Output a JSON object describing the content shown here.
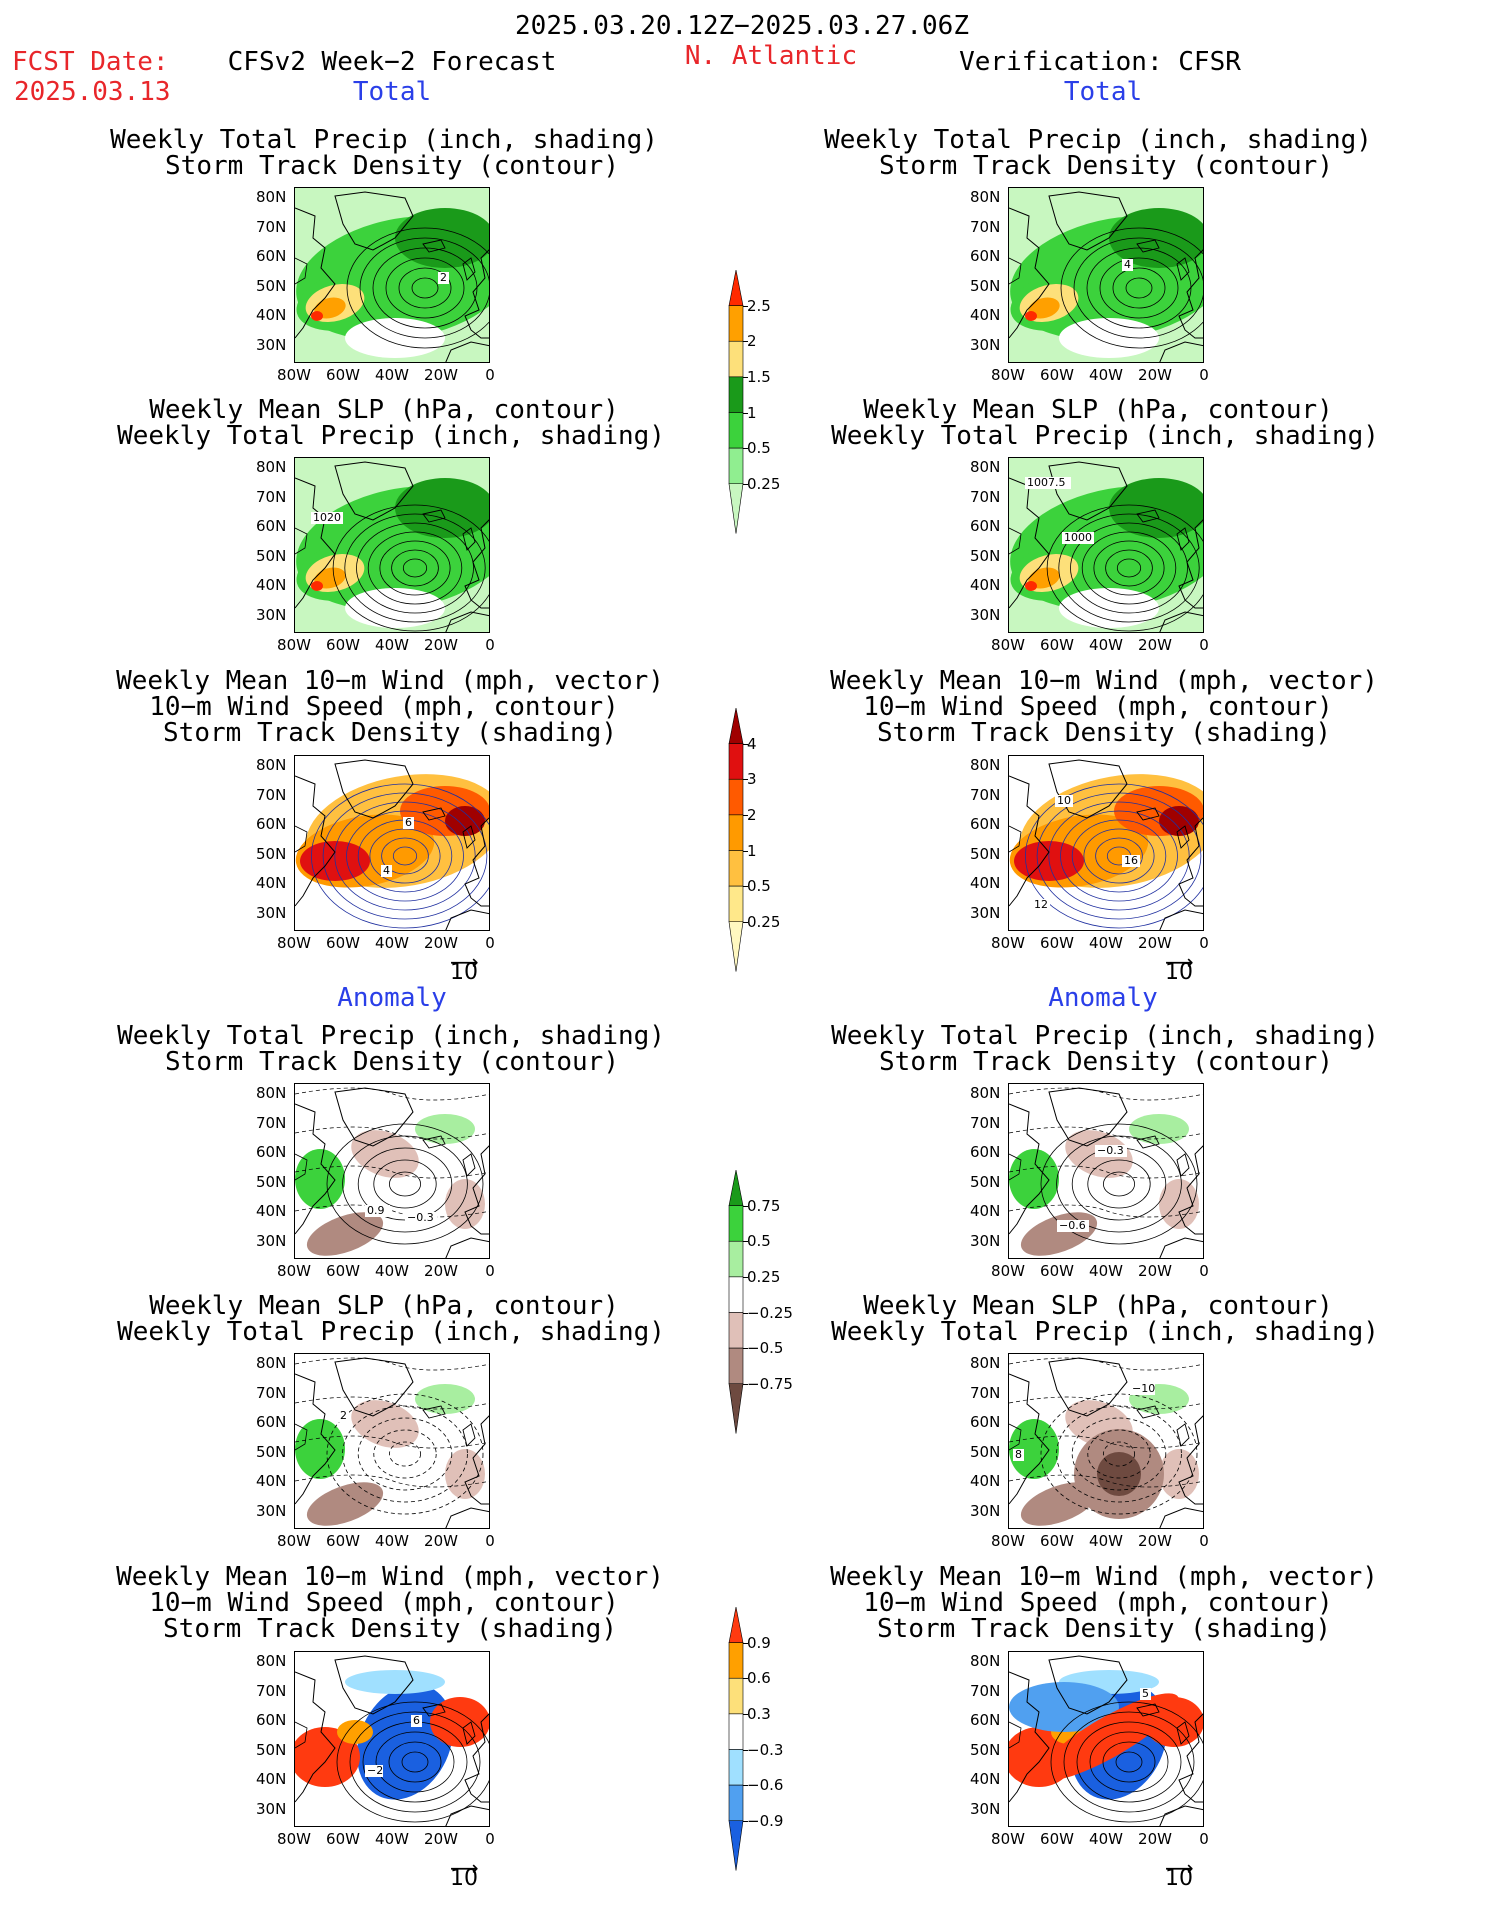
{
  "header": {
    "period": "2025.03.20.12Z−2025.03.27.06Z",
    "fcst_label": "FCST Date:",
    "fcst_date": "2025.03.13",
    "left_title": "CFSv2 Week−2 Forecast",
    "region": "N. Atlantic",
    "right_title": "Verification: CFSR"
  },
  "sections": {
    "total": "Total",
    "anomaly": "Anomaly"
  },
  "panel_titles": {
    "precip_storm": [
      "Weekly Total Precip (inch, shading)",
      "Storm Track Density (contour)"
    ],
    "slp_precip": [
      "Weekly Mean SLP (hPa, contour)",
      "Weekly Total Precip (inch, shading)"
    ],
    "wind_storm": [
      "Weekly Mean 10−m Wind (mph, vector)",
      "10−m Wind Speed (mph, contour)",
      "Storm Track Density (shading)"
    ]
  },
  "axes": {
    "lat_ticks": [
      "80N",
      "70N",
      "60N",
      "50N",
      "40N",
      "30N"
    ],
    "lon_ticks": [
      "80W",
      "60W",
      "40W",
      "20W",
      "0"
    ]
  },
  "vector_ref": "10",
  "contour_labels": {
    "f_total_precip": "2",
    "v_total_precip": "4",
    "f_total_slp": "1020",
    "v_total_slp_a": "1007.5",
    "v_total_slp_b": "1000",
    "f_total_wind_a": "6",
    "f_total_wind_b": "4",
    "v_total_wind_a": "10",
    "v_total_wind_b": "16",
    "v_total_wind_c": "12",
    "f_anom_precip_a": "0.9",
    "f_anom_precip_b": "−0.3",
    "v_anom_precip_a": "−0.3",
    "v_anom_precip_b": "−0.6",
    "f_anom_slp": "2",
    "v_anom_slp_a": "−10",
    "v_anom_slp_b": "8",
    "f_anom_wind_a": "6",
    "f_anom_wind_b": "−2",
    "v_anom_wind_a": "5"
  },
  "colorbars": {
    "total_precip": {
      "labels": [
        "2.5",
        "2",
        "1.5",
        "1",
        "0.5",
        "0.25"
      ],
      "colors": [
        "#ff2a00",
        "#ffa000",
        "#fde07a",
        "#1a9a1a",
        "#3cd23c",
        "#90ee90",
        "#c8f7c0"
      ]
    },
    "total_storm": {
      "labels": [
        "4",
        "3",
        "2",
        "1",
        "0.5",
        "0.25"
      ],
      "colors": [
        "#a00000",
        "#e01010",
        "#ff5a00",
        "#ff9a00",
        "#ffc040",
        "#ffe88a",
        "#fff8c0"
      ]
    },
    "anom_precip": {
      "labels": [
        "0.75",
        "0.5",
        "0.25",
        "−0.25",
        "−0.5",
        "−0.75"
      ],
      "colors": [
        "#1a9a1a",
        "#3cd23c",
        "#a8eea0",
        "#ffffff",
        "#e0c0b8",
        "#b08a80",
        "#6e4a40"
      ]
    },
    "anom_storm": {
      "labels": [
        "0.9",
        "0.6",
        "0.3",
        "−0.3",
        "−0.6",
        "−0.9"
      ],
      "colors": [
        "#ff3a10",
        "#ffa000",
        "#fde07a",
        "#ffffff",
        "#a0e0ff",
        "#50a0f0",
        "#1a60e0"
      ]
    }
  }
}
